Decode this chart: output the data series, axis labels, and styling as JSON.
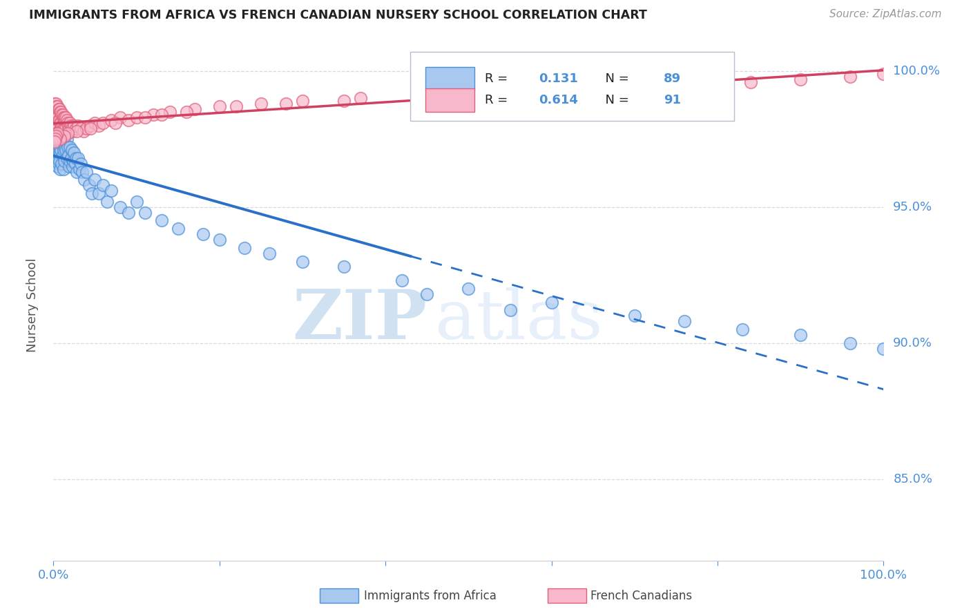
{
  "title": "IMMIGRANTS FROM AFRICA VS FRENCH CANADIAN NURSERY SCHOOL CORRELATION CHART",
  "source": "Source: ZipAtlas.com",
  "ylabel": "Nursery School",
  "right_yticks": [
    "100.0%",
    "95.0%",
    "90.0%",
    "85.0%"
  ],
  "right_ytick_vals": [
    1.0,
    0.95,
    0.9,
    0.85
  ],
  "legend": {
    "blue_R": "0.131",
    "blue_N": "89",
    "pink_R": "0.614",
    "pink_N": "91"
  },
  "blue_face_color": "#a8c8f0",
  "blue_edge_color": "#4a90d9",
  "pink_face_color": "#f8b8cc",
  "pink_edge_color": "#e0607a",
  "blue_line_color": "#2a70c9",
  "pink_line_color": "#d04060",
  "watermark_zip": "ZIP",
  "watermark_atlas": "atlas",
  "background_color": "#ffffff",
  "grid_color": "#d8d8e0",
  "title_color": "#222222",
  "tick_label_color": "#4a90d9",
  "ylabel_color": "#555555",
  "blue_scatter_x": [
    0.001,
    0.001,
    0.002,
    0.002,
    0.003,
    0.003,
    0.003,
    0.004,
    0.004,
    0.004,
    0.005,
    0.005,
    0.005,
    0.005,
    0.006,
    0.006,
    0.006,
    0.007,
    0.007,
    0.007,
    0.008,
    0.008,
    0.008,
    0.009,
    0.009,
    0.01,
    0.01,
    0.01,
    0.011,
    0.011,
    0.012,
    0.012,
    0.012,
    0.013,
    0.013,
    0.014,
    0.015,
    0.015,
    0.016,
    0.016,
    0.017,
    0.018,
    0.019,
    0.02,
    0.02,
    0.021,
    0.022,
    0.023,
    0.024,
    0.025,
    0.026,
    0.027,
    0.028,
    0.03,
    0.031,
    0.033,
    0.035,
    0.037,
    0.04,
    0.043,
    0.046,
    0.05,
    0.055,
    0.06,
    0.065,
    0.07,
    0.08,
    0.09,
    0.1,
    0.11,
    0.13,
    0.15,
    0.18,
    0.2,
    0.23,
    0.26,
    0.3,
    0.35,
    0.42,
    0.5,
    0.6,
    0.7,
    0.76,
    0.83,
    0.9,
    0.96,
    1.0,
    0.45,
    0.55
  ],
  "blue_scatter_y": [
    0.985,
    0.978,
    0.982,
    0.975,
    0.98,
    0.976,
    0.97,
    0.978,
    0.972,
    0.968,
    0.98,
    0.975,
    0.97,
    0.965,
    0.976,
    0.971,
    0.966,
    0.978,
    0.972,
    0.967,
    0.975,
    0.97,
    0.964,
    0.977,
    0.971,
    0.978,
    0.973,
    0.966,
    0.975,
    0.969,
    0.976,
    0.971,
    0.964,
    0.974,
    0.967,
    0.972,
    0.978,
    0.971,
    0.975,
    0.968,
    0.972,
    0.969,
    0.965,
    0.972,
    0.967,
    0.968,
    0.971,
    0.965,
    0.967,
    0.97,
    0.966,
    0.968,
    0.963,
    0.968,
    0.964,
    0.966,
    0.963,
    0.96,
    0.963,
    0.958,
    0.955,
    0.96,
    0.955,
    0.958,
    0.952,
    0.956,
    0.95,
    0.948,
    0.952,
    0.948,
    0.945,
    0.942,
    0.94,
    0.938,
    0.935,
    0.933,
    0.93,
    0.928,
    0.923,
    0.92,
    0.915,
    0.91,
    0.908,
    0.905,
    0.903,
    0.9,
    0.898,
    0.918,
    0.912
  ],
  "pink_scatter_x": [
    0.001,
    0.001,
    0.002,
    0.002,
    0.002,
    0.003,
    0.003,
    0.003,
    0.004,
    0.004,
    0.004,
    0.005,
    0.005,
    0.005,
    0.006,
    0.006,
    0.006,
    0.007,
    0.007,
    0.007,
    0.008,
    0.008,
    0.008,
    0.009,
    0.009,
    0.01,
    0.01,
    0.01,
    0.011,
    0.011,
    0.012,
    0.012,
    0.013,
    0.013,
    0.014,
    0.015,
    0.015,
    0.016,
    0.017,
    0.018,
    0.019,
    0.02,
    0.021,
    0.022,
    0.023,
    0.025,
    0.027,
    0.03,
    0.033,
    0.036,
    0.04,
    0.045,
    0.05,
    0.055,
    0.06,
    0.07,
    0.08,
    0.09,
    0.1,
    0.12,
    0.14,
    0.17,
    0.2,
    0.25,
    0.3,
    0.37,
    0.44,
    0.52,
    0.6,
    0.68,
    0.76,
    0.84,
    0.9,
    0.96,
    1.0,
    0.35,
    0.28,
    0.22,
    0.16,
    0.13,
    0.11,
    0.075,
    0.045,
    0.028,
    0.017,
    0.013,
    0.008,
    0.005,
    0.003,
    0.002,
    0.001
  ],
  "pink_scatter_y": [
    0.988,
    0.984,
    0.987,
    0.983,
    0.979,
    0.988,
    0.984,
    0.98,
    0.987,
    0.983,
    0.979,
    0.987,
    0.983,
    0.979,
    0.986,
    0.982,
    0.978,
    0.986,
    0.982,
    0.978,
    0.985,
    0.981,
    0.977,
    0.985,
    0.981,
    0.984,
    0.98,
    0.976,
    0.984,
    0.98,
    0.983,
    0.979,
    0.983,
    0.979,
    0.982,
    0.983,
    0.979,
    0.982,
    0.981,
    0.98,
    0.979,
    0.981,
    0.98,
    0.979,
    0.978,
    0.98,
    0.979,
    0.98,
    0.979,
    0.978,
    0.979,
    0.98,
    0.981,
    0.98,
    0.981,
    0.982,
    0.983,
    0.982,
    0.983,
    0.984,
    0.985,
    0.986,
    0.987,
    0.988,
    0.989,
    0.99,
    0.991,
    0.992,
    0.993,
    0.994,
    0.995,
    0.996,
    0.997,
    0.998,
    0.999,
    0.989,
    0.988,
    0.987,
    0.985,
    0.984,
    0.983,
    0.981,
    0.979,
    0.978,
    0.977,
    0.976,
    0.975,
    0.977,
    0.976,
    0.975,
    0.974
  ]
}
